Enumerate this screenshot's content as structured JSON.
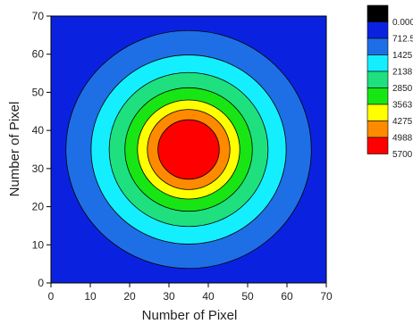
{
  "chart_data": {
    "type": "contour",
    "xlabel": "Number of Pixel",
    "ylabel": "Number of Pixel",
    "xlim": [
      0,
      70
    ],
    "ylim": [
      0,
      70
    ],
    "x_ticks": [
      0,
      10,
      20,
      30,
      40,
      50,
      60,
      70
    ],
    "y_ticks": [
      0,
      10,
      20,
      30,
      40,
      50,
      60,
      70
    ],
    "center": {
      "x": 35,
      "y": 35
    },
    "contour_levels": [
      {
        "label": "0.000",
        "value": 0,
        "color": "#000000"
      },
      {
        "label": "712.5",
        "value": 712.5,
        "color": "#0a22e0"
      },
      {
        "label": "1425",
        "value": 1425,
        "color": "#1e6fe6"
      },
      {
        "label": "2138",
        "value": 2138,
        "color": "#14efff"
      },
      {
        "label": "2850",
        "value": 2850,
        "color": "#1ee07f"
      },
      {
        "label": "3563",
        "value": 3563,
        "color": "#17e614"
      },
      {
        "label": "4275",
        "value": 4275,
        "color": "#ffff00"
      },
      {
        "label": "4988",
        "value": 4988,
        "color": "#ff8a00"
      },
      {
        "label": "5700",
        "value": 5700,
        "color": "#ff0000"
      }
    ],
    "rings": [
      {
        "band": "712.5 - 1425",
        "radius": 31.2,
        "color": "#1e6fe6"
      },
      {
        "band": "1425 - 2138",
        "radius": 24.8,
        "color": "#14efff"
      },
      {
        "band": "2138 - 2850",
        "radius": 20.2,
        "color": "#1ee07f"
      },
      {
        "band": "2850 - 3563",
        "radius": 16.2,
        "color": "#17e614"
      },
      {
        "band": "3563 - 4275",
        "radius": 13.0,
        "color": "#ffff00"
      },
      {
        "band": "4275 - 4988",
        "radius": 10.5,
        "color": "#ff8a00"
      },
      {
        "band": "4988 - 5700",
        "radius": 7.8,
        "color": "#ff0000"
      }
    ],
    "background_color": "#0a22e0",
    "legend_position": "right",
    "grid": false
  }
}
